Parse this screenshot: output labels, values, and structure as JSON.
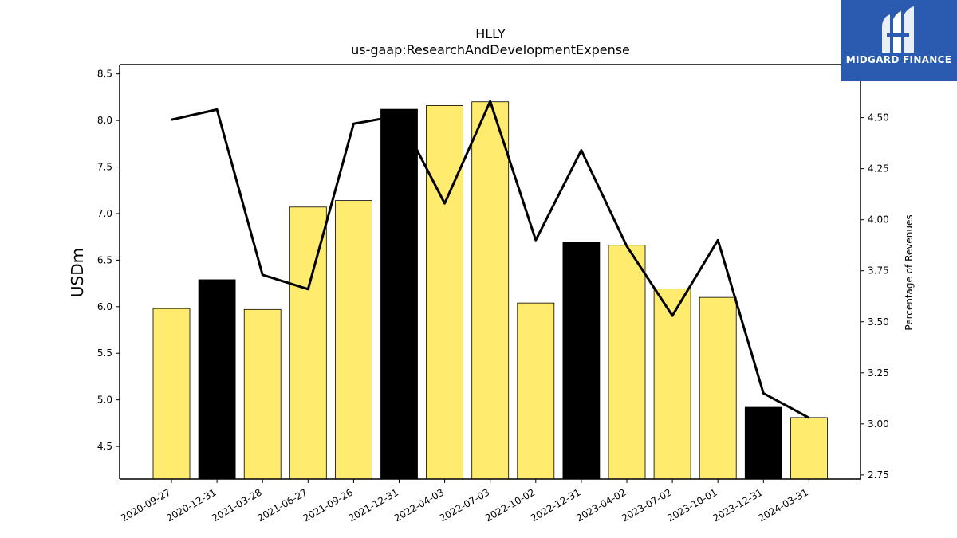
{
  "chart_data": {
    "type": "bar",
    "title": "HLLY",
    "subtitle": "us-gaap:ResearchAndDevelopmentExpense",
    "ylabel": "USDm",
    "y2label": "Percentage of Revenues",
    "categories": [
      "2020-09-27",
      "2020-12-31",
      "2021-03-28",
      "2021-06-27",
      "2021-09-26",
      "2021-12-31",
      "2022-04-03",
      "2022-07-03",
      "2022-10-02",
      "2022-12-31",
      "2023-04-02",
      "2023-07-02",
      "2023-10-01",
      "2023-12-31",
      "2024-03-31"
    ],
    "series": [
      {
        "type": "bar",
        "axis": "left",
        "values": [
          5.98,
          6.29,
          5.97,
          7.07,
          7.14,
          8.12,
          8.16,
          8.2,
          6.04,
          6.69,
          6.66,
          6.19,
          6.1,
          4.92,
          4.81
        ],
        "colors": [
          "#ffec6e",
          "#000000",
          "#ffec6e",
          "#ffec6e",
          "#ffec6e",
          "#000000",
          "#ffec6e",
          "#ffec6e",
          "#ffec6e",
          "#000000",
          "#ffec6e",
          "#ffec6e",
          "#ffec6e",
          "#000000",
          "#ffec6e"
        ]
      },
      {
        "type": "line",
        "axis": "right",
        "color": "#000000",
        "values": [
          4.49,
          4.54,
          3.73,
          3.66,
          4.47,
          4.51,
          4.08,
          4.58,
          3.9,
          4.34,
          3.87,
          3.53,
          3.9,
          3.15,
          3.03
        ]
      }
    ],
    "ylim": [
      4.15,
      8.6
    ],
    "y2lim": [
      2.73,
      4.76
    ],
    "yticks": [
      "4.5",
      "5.0",
      "5.5",
      "6.0",
      "6.5",
      "7.0",
      "7.5",
      "8.0",
      "8.5"
    ],
    "y2ticks": [
      "2.75",
      "3.00",
      "3.25",
      "3.50",
      "3.75",
      "4.00",
      "4.25",
      "4.50"
    ],
    "grid": false
  },
  "logo": {
    "text": "MIDGARD FINANCE",
    "bg": "#2a5bb0",
    "icon": "midgard-logo-icon"
  }
}
